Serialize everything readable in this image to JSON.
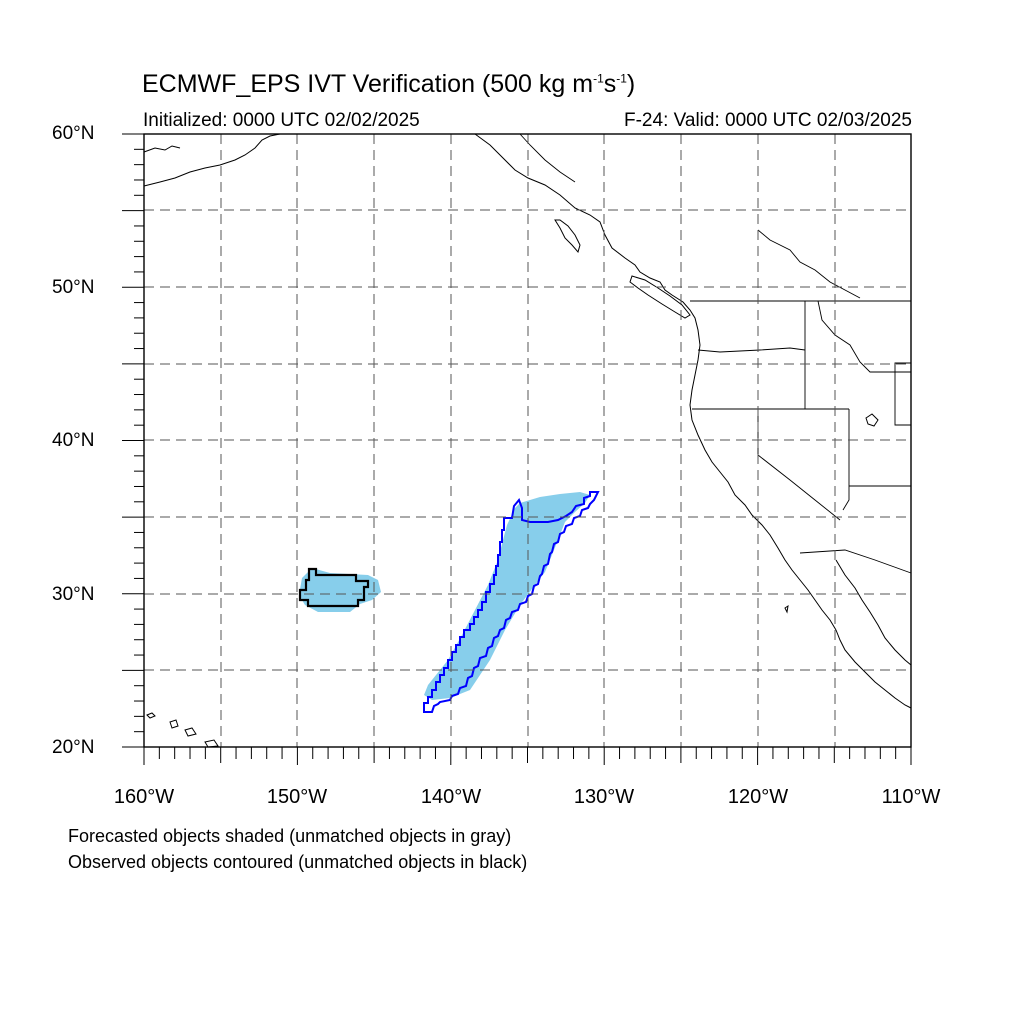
{
  "title": {
    "prefix": "ECMWF_EPS IVT Verification (500 kg m",
    "exp1": "-1",
    "mid": "s",
    "exp2": "-1",
    "suffix": ")"
  },
  "initialized": "Initialized: 0000 UTC 02/02/2025",
  "valid": "F-24: Valid: 0000 UTC 02/03/2025",
  "lat_labels": [
    "60°N",
    "50°N",
    "40°N",
    "30°N",
    "20°N"
  ],
  "lon_labels": [
    "160°W",
    "150°W",
    "140°W",
    "130°W",
    "120°W",
    "110°W"
  ],
  "notes": {
    "forecast": "Forecasted objects shaded (unmatched objects in gray)",
    "observed": "Observed objects contoured (unmatched objects in black)"
  },
  "colors": {
    "forecast_fill": "#87CEEB",
    "matched_contour": "#0000FF",
    "unmatched_contour": "#000000",
    "coastline": "#000000",
    "gridline": "#555555"
  }
}
